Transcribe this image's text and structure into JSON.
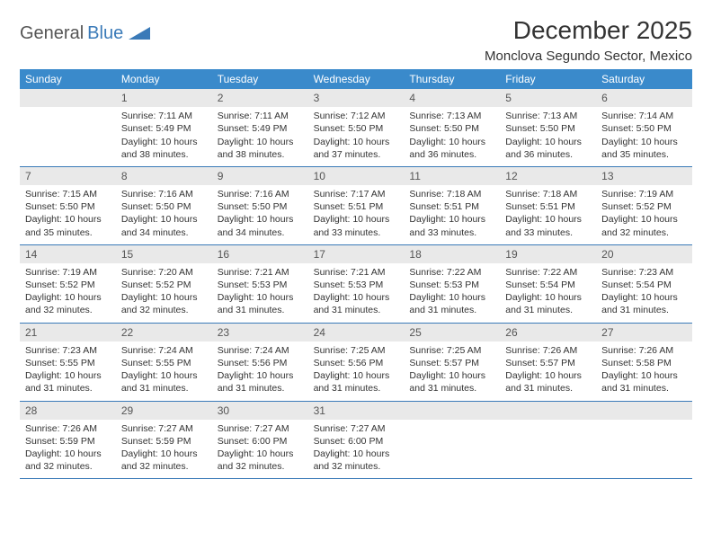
{
  "logo": {
    "text1": "General",
    "text2": "Blue"
  },
  "title": "December 2025",
  "location": "Monclova Segundo Sector, Mexico",
  "colors": {
    "header_bg": "#3a8acb",
    "num_bg": "#e9e9e9",
    "rule": "#3a7ab8",
    "text": "#333333",
    "logo_accent": "#3a7ab8"
  },
  "dow": [
    "Sunday",
    "Monday",
    "Tuesday",
    "Wednesday",
    "Thursday",
    "Friday",
    "Saturday"
  ],
  "weeks": [
    [
      null,
      {
        "n": "1",
        "sr": "7:11 AM",
        "ss": "5:49 PM",
        "dl": "10 hours and 38 minutes."
      },
      {
        "n": "2",
        "sr": "7:11 AM",
        "ss": "5:49 PM",
        "dl": "10 hours and 38 minutes."
      },
      {
        "n": "3",
        "sr": "7:12 AM",
        "ss": "5:50 PM",
        "dl": "10 hours and 37 minutes."
      },
      {
        "n": "4",
        "sr": "7:13 AM",
        "ss": "5:50 PM",
        "dl": "10 hours and 36 minutes."
      },
      {
        "n": "5",
        "sr": "7:13 AM",
        "ss": "5:50 PM",
        "dl": "10 hours and 36 minutes."
      },
      {
        "n": "6",
        "sr": "7:14 AM",
        "ss": "5:50 PM",
        "dl": "10 hours and 35 minutes."
      }
    ],
    [
      {
        "n": "7",
        "sr": "7:15 AM",
        "ss": "5:50 PM",
        "dl": "10 hours and 35 minutes."
      },
      {
        "n": "8",
        "sr": "7:16 AM",
        "ss": "5:50 PM",
        "dl": "10 hours and 34 minutes."
      },
      {
        "n": "9",
        "sr": "7:16 AM",
        "ss": "5:50 PM",
        "dl": "10 hours and 34 minutes."
      },
      {
        "n": "10",
        "sr": "7:17 AM",
        "ss": "5:51 PM",
        "dl": "10 hours and 33 minutes."
      },
      {
        "n": "11",
        "sr": "7:18 AM",
        "ss": "5:51 PM",
        "dl": "10 hours and 33 minutes."
      },
      {
        "n": "12",
        "sr": "7:18 AM",
        "ss": "5:51 PM",
        "dl": "10 hours and 33 minutes."
      },
      {
        "n": "13",
        "sr": "7:19 AM",
        "ss": "5:52 PM",
        "dl": "10 hours and 32 minutes."
      }
    ],
    [
      {
        "n": "14",
        "sr": "7:19 AM",
        "ss": "5:52 PM",
        "dl": "10 hours and 32 minutes."
      },
      {
        "n": "15",
        "sr": "7:20 AM",
        "ss": "5:52 PM",
        "dl": "10 hours and 32 minutes."
      },
      {
        "n": "16",
        "sr": "7:21 AM",
        "ss": "5:53 PM",
        "dl": "10 hours and 31 minutes."
      },
      {
        "n": "17",
        "sr": "7:21 AM",
        "ss": "5:53 PM",
        "dl": "10 hours and 31 minutes."
      },
      {
        "n": "18",
        "sr": "7:22 AM",
        "ss": "5:53 PM",
        "dl": "10 hours and 31 minutes."
      },
      {
        "n": "19",
        "sr": "7:22 AM",
        "ss": "5:54 PM",
        "dl": "10 hours and 31 minutes."
      },
      {
        "n": "20",
        "sr": "7:23 AM",
        "ss": "5:54 PM",
        "dl": "10 hours and 31 minutes."
      }
    ],
    [
      {
        "n": "21",
        "sr": "7:23 AM",
        "ss": "5:55 PM",
        "dl": "10 hours and 31 minutes."
      },
      {
        "n": "22",
        "sr": "7:24 AM",
        "ss": "5:55 PM",
        "dl": "10 hours and 31 minutes."
      },
      {
        "n": "23",
        "sr": "7:24 AM",
        "ss": "5:56 PM",
        "dl": "10 hours and 31 minutes."
      },
      {
        "n": "24",
        "sr": "7:25 AM",
        "ss": "5:56 PM",
        "dl": "10 hours and 31 minutes."
      },
      {
        "n": "25",
        "sr": "7:25 AM",
        "ss": "5:57 PM",
        "dl": "10 hours and 31 minutes."
      },
      {
        "n": "26",
        "sr": "7:26 AM",
        "ss": "5:57 PM",
        "dl": "10 hours and 31 minutes."
      },
      {
        "n": "27",
        "sr": "7:26 AM",
        "ss": "5:58 PM",
        "dl": "10 hours and 31 minutes."
      }
    ],
    [
      {
        "n": "28",
        "sr": "7:26 AM",
        "ss": "5:59 PM",
        "dl": "10 hours and 32 minutes."
      },
      {
        "n": "29",
        "sr": "7:27 AM",
        "ss": "5:59 PM",
        "dl": "10 hours and 32 minutes."
      },
      {
        "n": "30",
        "sr": "7:27 AM",
        "ss": "6:00 PM",
        "dl": "10 hours and 32 minutes."
      },
      {
        "n": "31",
        "sr": "7:27 AM",
        "ss": "6:00 PM",
        "dl": "10 hours and 32 minutes."
      },
      null,
      null,
      null
    ]
  ],
  "labels": {
    "sunrise": "Sunrise:",
    "sunset": "Sunset:",
    "daylight": "Daylight:"
  }
}
